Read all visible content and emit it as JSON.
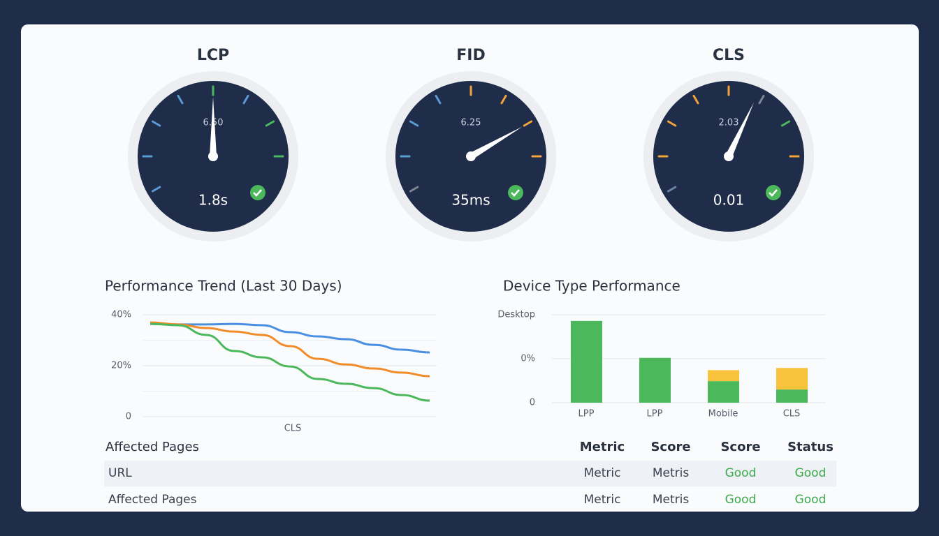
{
  "gauges": [
    {
      "title": "LCP",
      "scale_label": "6.50",
      "value": "1.8s"
    },
    {
      "title": "FID",
      "scale_label": "6.25",
      "value": "35ms"
    },
    {
      "title": "CLS",
      "scale_label": "2.03",
      "value": "0.01"
    }
  ],
  "trend_chart": {
    "type": "line",
    "title": "Performance Trend (Last 30 Days)",
    "x_label": "CLS",
    "ylim": [
      0,
      40
    ],
    "yticks": [
      0,
      {
        "value": 20,
        "label": "20%"
      },
      {
        "value": 40,
        "label": "40%"
      }
    ],
    "grid": true,
    "series": [
      {
        "color": "#4a90e2",
        "values": [
          36.4,
          36.2,
          36.2,
          36.4,
          35.9,
          33.2,
          31.5,
          30.4,
          28.2,
          26.3,
          25.2
        ]
      },
      {
        "color": "#f28c28",
        "values": [
          37,
          36.2,
          34.8,
          33.4,
          32.1,
          27.7,
          22.7,
          20.5,
          18.9,
          17.3,
          15.9
        ]
      },
      {
        "color": "#4cb85c",
        "values": [
          36.4,
          35.9,
          32.1,
          25.8,
          23.3,
          19.7,
          14.8,
          12.9,
          11.2,
          8.5,
          6.3
        ]
      }
    ]
  },
  "device_chart": {
    "type": "stacked_bar",
    "title": "Device Type Performance",
    "categories": [
      "LPP",
      "LPP",
      "Mobile",
      "CLS"
    ],
    "y_labels": [
      "Desktop",
      "0%",
      "0"
    ],
    "ylim": [
      0,
      2
    ],
    "series": [
      {
        "color": "#4cb85c",
        "values": [
          1.86,
          1.02,
          0.49,
          0.3
        ]
      },
      {
        "color": "#f8c23a",
        "values": [
          0,
          0,
          0.25,
          0.49
        ]
      }
    ]
  },
  "table": {
    "header": [
      "Affected Pages",
      "Metric",
      "Score",
      "Score",
      "Status"
    ],
    "rows": [
      [
        "URL",
        "Metric",
        "Metris",
        "Good",
        "Good"
      ],
      [
        "Affected Pages",
        "Metric",
        "Metris",
        "Good",
        "Good"
      ]
    ]
  }
}
